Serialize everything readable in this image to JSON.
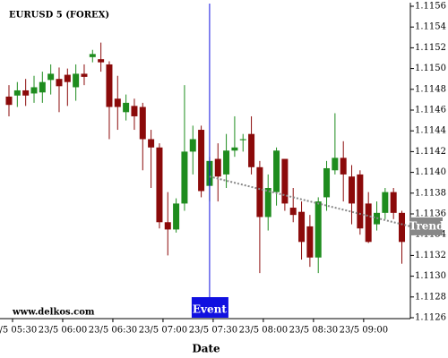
{
  "chart_data": {
    "type": "candlestick",
    "title": "EURUSD 5 (FOREX)",
    "x_label": "Date",
    "watermark": "www.delkos.com",
    "categories": [
      "23/5 05:30",
      null,
      null,
      null,
      null,
      null,
      "23/5 06:00",
      null,
      null,
      null,
      null,
      null,
      "23/5 06:30",
      null,
      null,
      null,
      null,
      null,
      "23/5 07:00",
      null,
      null,
      null,
      null,
      null,
      "23/5 07:30",
      null,
      null,
      null,
      null,
      null,
      "23/5 08:00",
      null,
      null,
      null,
      null,
      null,
      "23/5 08:30",
      null,
      null,
      null,
      null,
      null,
      "23/5 09:00",
      null,
      null,
      null,
      null,
      null
    ],
    "open": [
      1.11473,
      1.11474,
      1.11479,
      1.11476,
      1.11477,
      1.11489,
      1.1149,
      1.11494,
      1.11482,
      1.11495,
      1.11511,
      1.11509,
      1.11504,
      1.11471,
      1.11458,
      1.11464,
      1.11463,
      1.11432,
      1.11424,
      1.11352,
      1.11345,
      1.1137,
      1.1142,
      1.11441,
      1.11387,
      1.11413,
      1.11398,
      1.11421,
      1.11431,
      1.11437,
      1.11405,
      1.11357,
      1.11381,
      1.11413,
      1.11366,
      1.11362,
      1.11348,
      1.11318,
      1.11376,
      1.11402,
      1.11414,
      1.11396,
      1.11398,
      1.1137,
      1.1135,
      1.11361,
      1.11381,
      1.11361
    ],
    "high": [
      1.11484,
      1.11487,
      1.1149,
      1.11493,
      1.11497,
      1.11504,
      1.11501,
      1.115,
      1.11504,
      1.11504,
      1.11518,
      1.11525,
      1.11507,
      1.11493,
      1.11475,
      1.11471,
      1.11467,
      1.11441,
      1.11428,
      1.11381,
      1.11375,
      1.11484,
      1.11445,
      1.11445,
      1.11415,
      1.11428,
      1.11437,
      1.11454,
      1.11437,
      1.11454,
      1.11411,
      1.11398,
      1.11424,
      1.11413,
      1.11385,
      1.11372,
      1.11359,
      1.11376,
      1.11411,
      1.11457,
      1.1143,
      1.11407,
      1.11402,
      1.11381,
      1.11372,
      1.11385,
      1.11385,
      1.11363
    ],
    "low": [
      1.11454,
      1.11463,
      1.11464,
      1.11467,
      1.11467,
      1.11475,
      1.11458,
      1.11464,
      1.11469,
      1.11484,
      1.11506,
      1.11497,
      1.11432,
      1.11441,
      1.1145,
      1.11441,
      1.11402,
      1.11385,
      1.11346,
      1.1132,
      1.11342,
      1.11363,
      1.11398,
      1.11376,
      1.11372,
      1.11372,
      1.11385,
      1.11415,
      1.1142,
      1.11398,
      1.11303,
      1.11344,
      1.11368,
      1.11363,
      1.11352,
      1.11316,
      1.11309,
      1.11303,
      1.11363,
      1.11398,
      1.11372,
      1.1135,
      1.1134,
      1.11332,
      1.11344,
      1.11355,
      1.11355,
      1.11312
    ],
    "close": [
      1.11465,
      1.11479,
      1.11474,
      1.11482,
      1.11487,
      1.11495,
      1.11483,
      1.11487,
      1.11495,
      1.11492,
      1.11514,
      1.11506,
      1.11463,
      1.11463,
      1.11467,
      1.11454,
      1.11432,
      1.11424,
      1.11352,
      1.11345,
      1.1137,
      1.1142,
      1.11432,
      1.11382,
      1.11411,
      1.11396,
      1.11421,
      1.11424,
      1.11432,
      1.11405,
      1.11357,
      1.11385,
      1.11421,
      1.1137,
      1.11359,
      1.11333,
      1.11318,
      1.11372,
      1.11404,
      1.11414,
      1.11398,
      1.1137,
      1.11346,
      1.11333,
      1.11361,
      1.11381,
      1.11361,
      1.11333
    ],
    "up_color": "#1e8c1e",
    "down_color": "#8b0a0a",
    "ylim": [
      1.1126,
      1.1156
    ],
    "yticks": [
      1.1126,
      1.1128,
      {
        "value": 1.113,
        "label": "1.1130"
      },
      1.1132,
      1.1134,
      1.1136,
      1.1138,
      {
        "value": 1.114,
        "label": "1.1140"
      },
      1.1142,
      1.1144,
      1.1146,
      1.1148,
      {
        "value": 1.115,
        "label": "1.1150"
      },
      1.1152,
      1.1154,
      1.1156
    ],
    "event": {
      "label": "Event",
      "category": "23/5 07:30",
      "color": "#1010e0"
    },
    "trend": {
      "label": "Trend",
      "values": [
        1.11396,
        1.11348
      ],
      "color": "#888888"
    }
  }
}
